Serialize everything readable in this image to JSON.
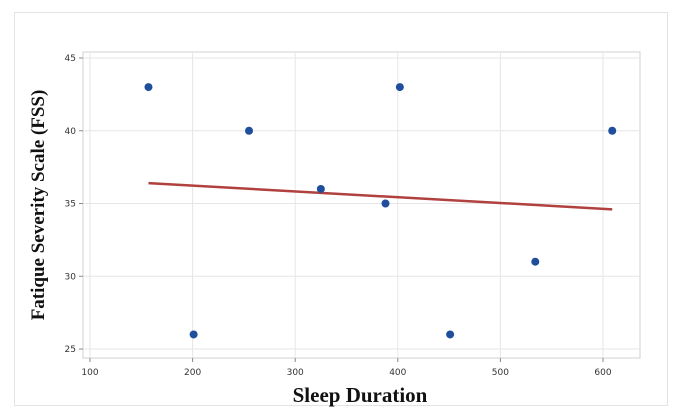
{
  "chart_data": {
    "type": "scatter",
    "xlabel": "Sleep Duration",
    "ylabel": "Fatique Severity Scale (FSS)",
    "xlim": [
      100,
      620
    ],
    "ylim": [
      25,
      45
    ],
    "xticks": [
      100,
      200,
      300,
      400,
      500,
      600
    ],
    "yticks": [
      25,
      30,
      35,
      40,
      45
    ],
    "grid": true,
    "legend": "none",
    "point_color": "#1f4e9c",
    "line_color": "#b0413e",
    "series": [
      {
        "x": [
          157,
          201,
          255,
          325,
          388,
          402,
          451,
          534,
          609
        ],
        "y": [
          43,
          26,
          40,
          36,
          35,
          43,
          26,
          31,
          40
        ]
      }
    ],
    "trendline": {
      "x": [
        157,
        609
      ],
      "y": [
        36.4,
        34.6
      ]
    }
  }
}
